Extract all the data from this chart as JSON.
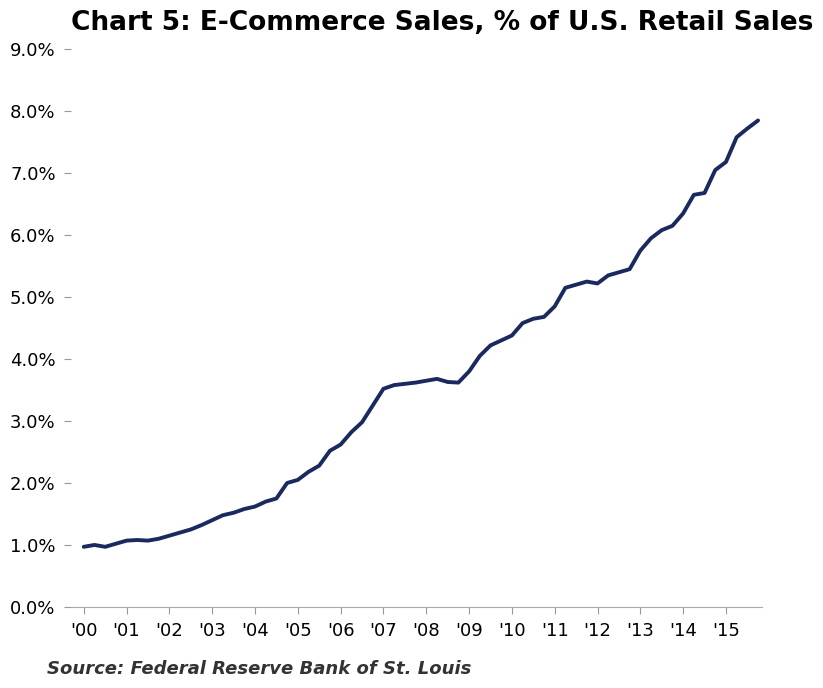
{
  "title": "Chart 5: E-Commerce Sales, % of U.S. Retail Sales",
  "source": "Source: Federal Reserve Bank of St. Louis",
  "line_color": "#1a2a5e",
  "background_color": "#ffffff",
  "xlim_left": 1999.7,
  "xlim_right": 2015.85,
  "ylim": [
    0.0,
    0.09
  ],
  "yticks": [
    0.0,
    0.01,
    0.02,
    0.03,
    0.04,
    0.05,
    0.06,
    0.07,
    0.08,
    0.09
  ],
  "xtick_labels": [
    "'00",
    "'01",
    "'02",
    "'03",
    "'04",
    "'05",
    "'06",
    "'07",
    "'08",
    "'09",
    "'10",
    "'11",
    "'12",
    "'13",
    "'14",
    "'15"
  ],
  "xtick_positions": [
    2000,
    2001,
    2002,
    2003,
    2004,
    2005,
    2006,
    2007,
    2008,
    2009,
    2010,
    2011,
    2012,
    2013,
    2014,
    2015
  ],
  "data": {
    "x": [
      2000.0,
      2000.25,
      2000.5,
      2000.75,
      2001.0,
      2001.25,
      2001.5,
      2001.75,
      2002.0,
      2002.25,
      2002.5,
      2002.75,
      2003.0,
      2003.25,
      2003.5,
      2003.75,
      2004.0,
      2004.25,
      2004.5,
      2004.75,
      2005.0,
      2005.25,
      2005.5,
      2005.75,
      2006.0,
      2006.25,
      2006.5,
      2006.75,
      2007.0,
      2007.25,
      2007.5,
      2007.75,
      2008.0,
      2008.25,
      2008.5,
      2008.75,
      2009.0,
      2009.25,
      2009.5,
      2009.75,
      2010.0,
      2010.25,
      2010.5,
      2010.75,
      2011.0,
      2011.25,
      2011.5,
      2011.75,
      2012.0,
      2012.25,
      2012.5,
      2012.75,
      2013.0,
      2013.25,
      2013.5,
      2013.75,
      2014.0,
      2014.25,
      2014.5,
      2014.75,
      2015.0,
      2015.25,
      2015.5,
      2015.75
    ],
    "y": [
      0.0097,
      0.01,
      0.0097,
      0.0102,
      0.0107,
      0.0108,
      0.0107,
      0.011,
      0.0115,
      0.012,
      0.0125,
      0.0132,
      0.014,
      0.0148,
      0.0152,
      0.0158,
      0.0162,
      0.017,
      0.0175,
      0.02,
      0.0205,
      0.0218,
      0.0228,
      0.0252,
      0.0262,
      0.0282,
      0.0298,
      0.0325,
      0.0352,
      0.0358,
      0.036,
      0.0362,
      0.0365,
      0.0368,
      0.0363,
      0.0362,
      0.038,
      0.0405,
      0.0422,
      0.043,
      0.0438,
      0.0458,
      0.0465,
      0.0468,
      0.0485,
      0.0515,
      0.052,
      0.0525,
      0.0522,
      0.0535,
      0.054,
      0.0545,
      0.0575,
      0.0595,
      0.0608,
      0.0615,
      0.0635,
      0.0665,
      0.0668,
      0.0705,
      0.0718,
      0.0758,
      0.0772,
      0.0785
    ]
  },
  "title_fontsize": 19,
  "tick_fontsize": 13,
  "source_fontsize": 13,
  "line_width": 2.8
}
